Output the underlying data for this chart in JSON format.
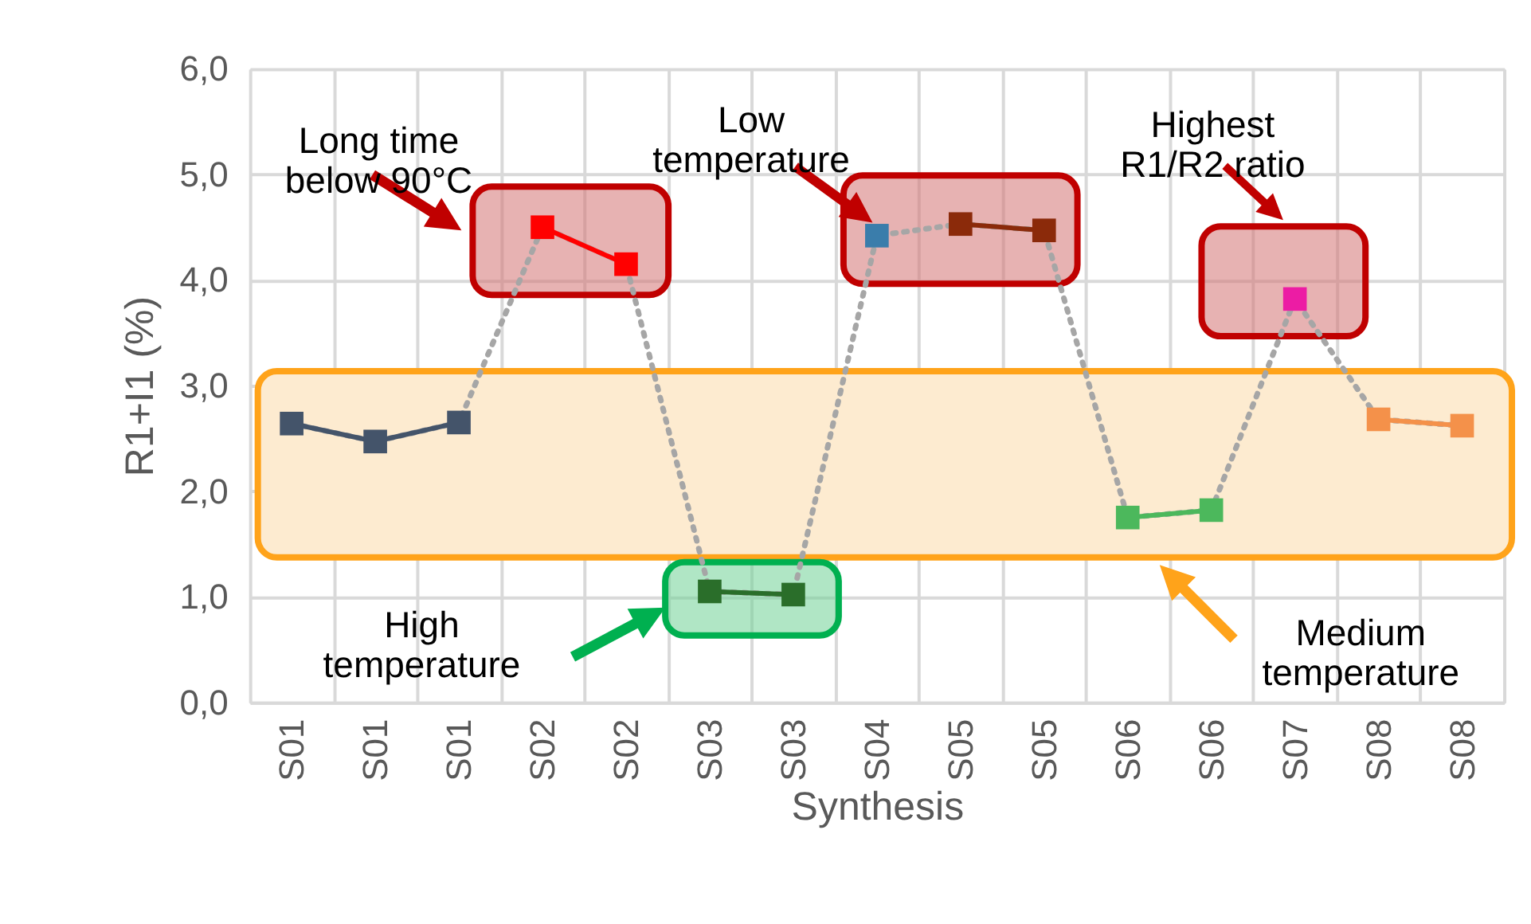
{
  "chart_data": {
    "type": "line",
    "xlabel": "Synthesis",
    "ylabel": "R1+I1 (%)",
    "categories": [
      "S01",
      "S01",
      "S01",
      "S02",
      "S02",
      "S03",
      "S03",
      "S04",
      "S05",
      "S05",
      "S06",
      "S06",
      "S07",
      "S08",
      "S08"
    ],
    "ylim": [
      0,
      6
    ],
    "yticks": [
      {
        "value": 0,
        "label": "0,0"
      },
      {
        "value": 1,
        "label": "1,0"
      },
      {
        "value": 2,
        "label": "2,0"
      },
      {
        "value": 3,
        "label": "3,0"
      },
      {
        "value": 4,
        "label": "4,0"
      },
      {
        "value": 5,
        "label": "5,0"
      },
      {
        "value": 6,
        "label": "6,0"
      }
    ],
    "grid": true,
    "marker": "square",
    "line_style": "solid",
    "series": [
      {
        "color": "#a6a6a6",
        "line_style": "dotted",
        "marker": "none",
        "values": [
          2.64,
          2.47,
          2.65,
          4.5,
          4.15,
          1.05,
          1.02,
          4.42,
          4.53,
          4.47,
          1.75,
          1.82,
          3.82,
          2.68,
          2.62
        ]
      },
      {
        "color": "#44546a",
        "values": [
          2.64,
          2.47,
          2.65,
          null,
          null,
          null,
          null,
          null,
          null,
          null,
          null,
          null,
          null,
          null,
          null
        ]
      },
      {
        "color": "#ff0000",
        "values": [
          null,
          null,
          null,
          4.5,
          4.15,
          null,
          null,
          null,
          null,
          null,
          null,
          null,
          null,
          null,
          null
        ]
      },
      {
        "color": "#2a6e2a",
        "values": [
          null,
          null,
          null,
          null,
          null,
          1.05,
          1.02,
          null,
          null,
          null,
          null,
          null,
          null,
          null,
          null
        ]
      },
      {
        "color": "#3a7dab",
        "values": [
          null,
          null,
          null,
          null,
          null,
          null,
          null,
          4.42,
          null,
          null,
          null,
          null,
          null,
          null,
          null
        ]
      },
      {
        "color": "#8b2a0a",
        "values": [
          null,
          null,
          null,
          null,
          null,
          null,
          null,
          null,
          4.53,
          4.47,
          null,
          null,
          null,
          null,
          null
        ]
      },
      {
        "color": "#4cb85c",
        "values": [
          null,
          null,
          null,
          null,
          null,
          null,
          null,
          null,
          null,
          null,
          1.75,
          1.82,
          null,
          null,
          null
        ]
      },
      {
        "color": "#ec1ca4",
        "values": [
          null,
          null,
          null,
          null,
          null,
          null,
          null,
          null,
          null,
          null,
          null,
          null,
          3.82,
          null,
          null
        ]
      },
      {
        "color": "#f4914a",
        "values": [
          null,
          null,
          null,
          null,
          null,
          null,
          null,
          null,
          null,
          null,
          null,
          null,
          null,
          2.68,
          2.62
        ]
      }
    ],
    "annotations": [
      "Long time\nbelow 90°C",
      "Low\ntemperature",
      "Highest\nR1/R2 ratio",
      "High\ntemperature",
      "Medium\ntemperature"
    ]
  }
}
